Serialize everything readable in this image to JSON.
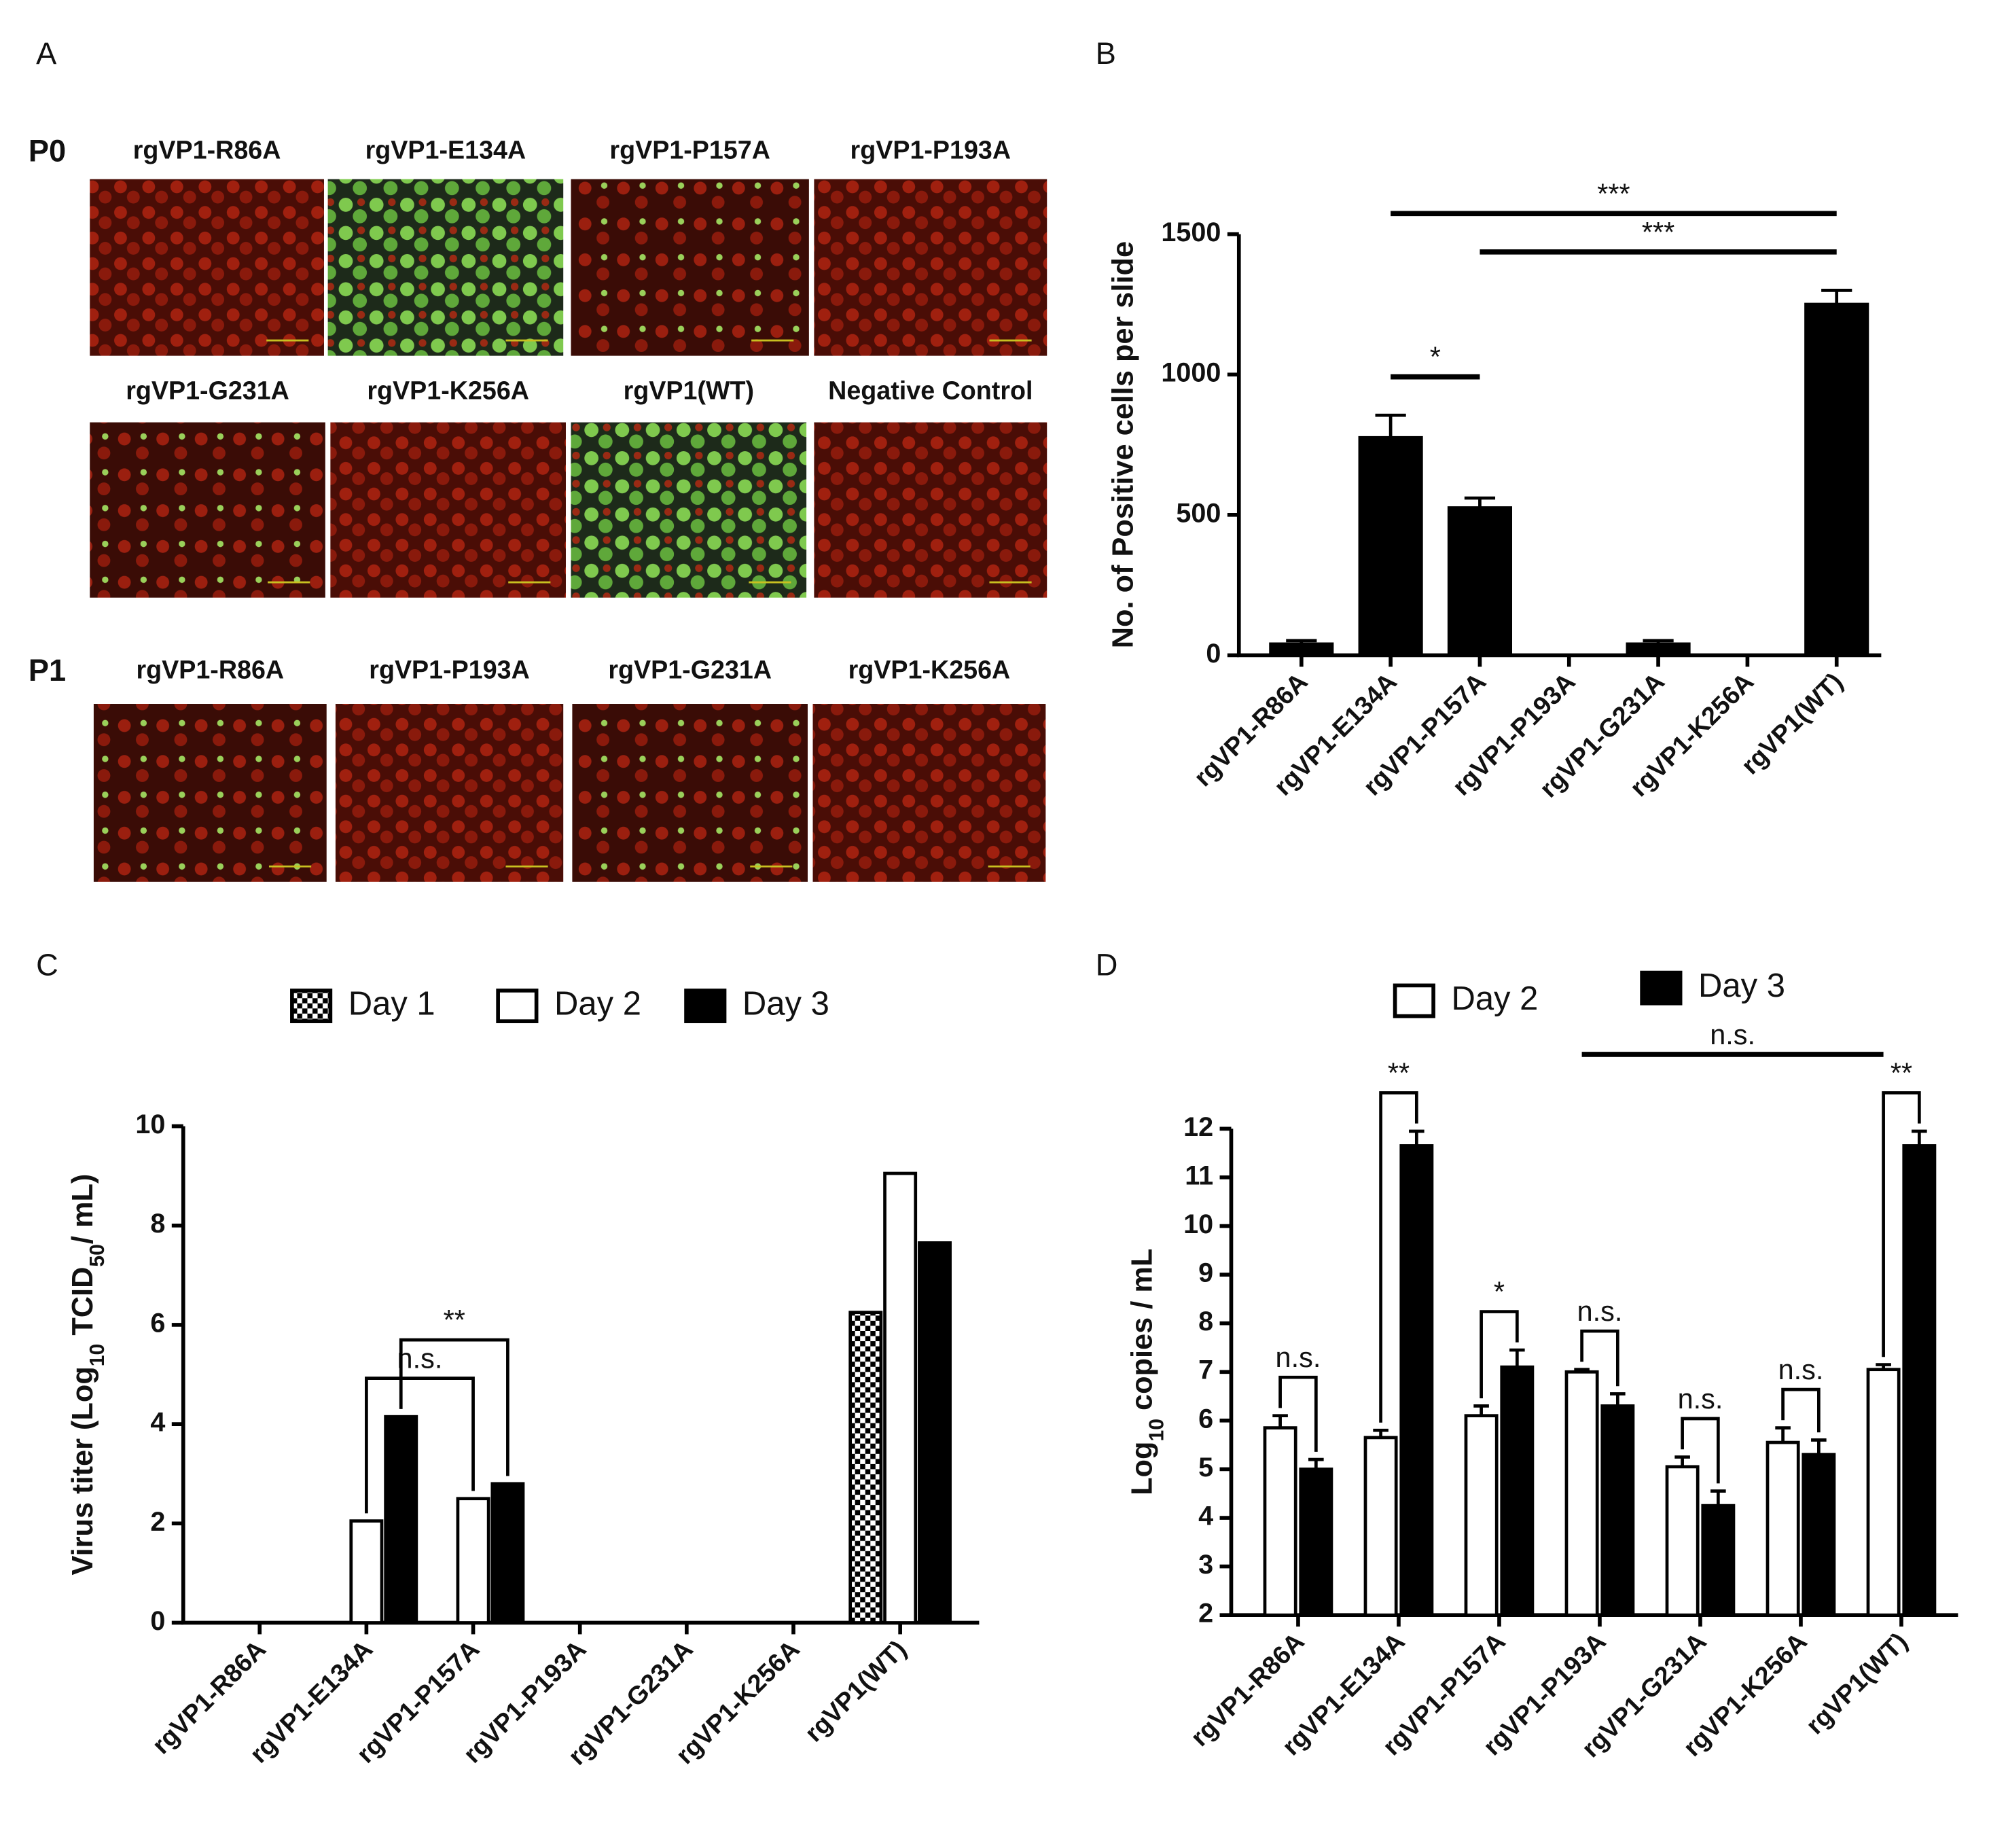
{
  "figure_a": {
    "label": "A",
    "rows": [
      {
        "label": "P0",
        "titles": [
          "rgVP1-R86A",
          "rgVP1-E134A",
          "rgVP1-P157A",
          "rgVP1-P193A"
        ]
      },
      {
        "titles": [
          "rgVP1-G231A",
          "rgVP1-K256A",
          "rgVP1(WT)",
          "Negative Control"
        ]
      },
      {
        "label": "P1",
        "titles": [
          "rgVP1-R86A",
          "rgVP1-P193A",
          "rgVP1-G231A",
          "rgVP1-K256A"
        ]
      }
    ]
  },
  "chart_data": [
    {
      "panel": "B",
      "type": "bar",
      "y_label": [
        {
          "text": "No. of Positive cells per slide"
        }
      ],
      "categories": [
        "rgVP1-R86A",
        "rgVP1-E134A",
        "rgVP1-P157A",
        "rgVP1-P193A",
        "rgVP1-G231A",
        "rgVP1-K256A",
        "rgVP1(WT)"
      ],
      "values": [
        40,
        775,
        525,
        0,
        40,
        0,
        1250
      ],
      "errors": [
        12,
        80,
        35,
        null,
        12,
        null,
        50
      ],
      "color": "#000000",
      "ylim": [
        0,
        1500
      ],
      "yticks": [
        0,
        500,
        1000,
        1500
      ],
      "annotations": [
        {
          "text": "*",
          "categories": [
            "rgVP1-E134A",
            "rgVP1-P157A"
          ],
          "style": "line"
        },
        {
          "text": "***",
          "categories": [
            "rgVP1-P157A",
            "rgVP1(WT)"
          ],
          "style": "line"
        },
        {
          "text": "***",
          "categories": [
            "rgVP1-E134A",
            "rgVP1(WT)"
          ],
          "style": "line"
        }
      ]
    },
    {
      "panel": "C",
      "type": "bar",
      "y_label": [
        {
          "text": "Virus titer (Log"
        },
        {
          "text": "10",
          "subscript": true
        },
        {
          "text": " TCID"
        },
        {
          "text": "50",
          "subscript": true
        },
        {
          "text": "/ mL)"
        }
      ],
      "categories": [
        "rgVP1-R86A",
        "rgVP1-E134A",
        "rgVP1-P157A",
        "rgVP1-P193A",
        "rgVP1-G231A",
        "rgVP1-K256A",
        "rgVP1(WT)"
      ],
      "series": [
        {
          "name": "Day 1",
          "color": "#ffffff",
          "pattern": "checker",
          "values": [
            null,
            null,
            null,
            null,
            null,
            null,
            6.25
          ]
        },
        {
          "name": "Day 2",
          "color": "#ffffff",
          "values": [
            null,
            2.05,
            2.5,
            null,
            null,
            null,
            9.05
          ]
        },
        {
          "name": "Day 3",
          "color": "#000000",
          "values": [
            null,
            4.15,
            2.8,
            null,
            null,
            null,
            7.65
          ]
        }
      ],
      "ylim": [
        0,
        10
      ],
      "yticks": [
        0,
        2,
        4,
        6,
        8,
        10
      ],
      "annotations": [
        {
          "text": "n.s.",
          "categories": [
            "rgVP1-E134A",
            "rgVP1-P157A"
          ],
          "series": [
            "Day 2",
            "Day 2"
          ],
          "style": "bracket"
        },
        {
          "text": "**",
          "categories": [
            "rgVP1-E134A",
            "rgVP1-P157A"
          ],
          "series": [
            "Day 3",
            "Day 3"
          ],
          "style": "bracket"
        }
      ]
    },
    {
      "panel": "D",
      "type": "bar",
      "y_label": [
        {
          "text": "Log"
        },
        {
          "text": "10",
          "subscript": true
        },
        {
          "text": " copies / mL"
        }
      ],
      "categories": [
        "rgVP1-R86A",
        "rgVP1-E134A",
        "rgVP1-P157A",
        "rgVP1-P193A",
        "rgVP1-G231A",
        "rgVP1-K256A",
        "rgVP1(WT)"
      ],
      "series": [
        {
          "name": "Day 2",
          "color": "#ffffff",
          "values": [
            5.85,
            5.65,
            6.1,
            7.0,
            5.05,
            5.55,
            7.05
          ],
          "errors": [
            0.25,
            0.15,
            0.2,
            0.05,
            0.2,
            0.3,
            0.1
          ]
        },
        {
          "name": "Day 3",
          "color": "#000000",
          "values": [
            5.0,
            11.65,
            7.1,
            6.3,
            4.25,
            5.3,
            11.65
          ],
          "errors": [
            0.2,
            0.3,
            0.35,
            0.25,
            0.3,
            0.3,
            0.3
          ]
        }
      ],
      "ylim": [
        2,
        12
      ],
      "yticks": [
        2,
        3,
        4,
        5,
        6,
        7,
        8,
        9,
        10,
        11,
        12
      ],
      "annotations": [
        {
          "text": "n.s.",
          "categories": [
            "rgVP1-R86A",
            "rgVP1-R86A"
          ],
          "series": [
            "Day 2",
            "Day 3"
          ],
          "style": "bracket"
        },
        {
          "text": "**",
          "categories": [
            "rgVP1-E134A",
            "rgVP1-E134A"
          ],
          "series": [
            "Day 2",
            "Day 3"
          ],
          "style": "bracket"
        },
        {
          "text": "*",
          "categories": [
            "rgVP1-P157A",
            "rgVP1-P157A"
          ],
          "series": [
            "Day 2",
            "Day 3"
          ],
          "style": "bracket"
        },
        {
          "text": "n.s.",
          "categories": [
            "rgVP1-P193A",
            "rgVP1-P193A"
          ],
          "series": [
            "Day 2",
            "Day 3"
          ],
          "style": "bracket"
        },
        {
          "text": "n.s.",
          "categories": [
            "rgVP1-G231A",
            "rgVP1-G231A"
          ],
          "series": [
            "Day 2",
            "Day 3"
          ],
          "style": "bracket"
        },
        {
          "text": "n.s.",
          "categories": [
            "rgVP1-K256A",
            "rgVP1-K256A"
          ],
          "series": [
            "Day 2",
            "Day 3"
          ],
          "style": "bracket"
        },
        {
          "text": "**",
          "categories": [
            "rgVP1(WT)",
            "rgVP1(WT)"
          ],
          "series": [
            "Day 2",
            "Day 3"
          ],
          "style": "bracket"
        },
        {
          "text": "n.s.",
          "categories": [
            "rgVP1-P193A",
            "rgVP1(WT)"
          ],
          "series": [
            "Day 2",
            "Day 2"
          ],
          "style": "line"
        }
      ]
    }
  ]
}
